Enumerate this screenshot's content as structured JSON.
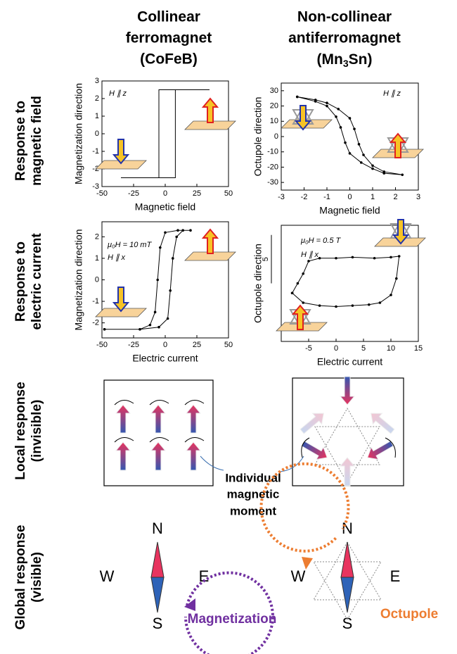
{
  "columns": [
    {
      "lines": [
        "Collinear",
        "ferromagnet",
        "(CoFeB)"
      ]
    },
    {
      "lines": [
        "Non-collinear",
        "antiferromagnet"
      ],
      "formula": [
        "(Mn",
        "3",
        "Sn)"
      ]
    }
  ],
  "rows": [
    [
      "Response to",
      "magnetic field"
    ],
    [
      "Response to",
      "electric current"
    ],
    [
      "Local response",
      "(invisible)"
    ],
    [
      "Global response",
      "(visible)"
    ]
  ],
  "chart_data": [
    {
      "type": "line",
      "x_label": "Magnetic field",
      "y_label": "Magnetization direction",
      "annotations": [
        "H ∥ z"
      ],
      "x": [
        -35,
        8,
        8,
        35,
        -5,
        -5,
        -35
      ],
      "values": [
        -2.5,
        -2.5,
        2.5,
        2.5,
        2.5,
        -2.5,
        -2.5
      ],
      "color": "#000000",
      "markers": false,
      "xlim": [
        -50,
        50
      ],
      "ylim": [
        -3,
        3
      ],
      "xticks": [
        -50,
        -25,
        0,
        25,
        50
      ],
      "yticks": [
        -3,
        -2,
        -1,
        0,
        1,
        2,
        3
      ]
    },
    {
      "type": "line",
      "x_label": "Magnetic field",
      "y_label": "Octupole direction",
      "annotations": [
        "H ∥ z"
      ],
      "x": [
        -2.3,
        -1.5,
        -1,
        -0.5,
        0,
        0.2,
        0.4,
        0.6,
        1,
        1.5,
        2.3,
        1.5,
        1,
        0.5,
        0,
        -0.2,
        -0.4,
        -0.6,
        -1,
        -1.5,
        -2.3
      ],
      "values": [
        26,
        24,
        22,
        18,
        12,
        5,
        -5,
        -12,
        -19,
        -23,
        -25,
        -24,
        -21,
        -17,
        -11,
        -4,
        6,
        13,
        20,
        23,
        26
      ],
      "color": "#000000",
      "markers": true,
      "xlim": [
        -3,
        3
      ],
      "ylim": [
        -35,
        35
      ],
      "xticks": [
        -3,
        -2,
        -1,
        0,
        1,
        2,
        3
      ],
      "yticks": [
        -30,
        -20,
        -10,
        0,
        10,
        20,
        30
      ]
    },
    {
      "type": "line",
      "x_label": "Electric current",
      "y_label": "Magnetization direction",
      "annotations": [
        "μ₀H = 10 mT",
        "H ∥ x"
      ],
      "x": [
        -48,
        -20,
        -5,
        2,
        4,
        6,
        9,
        14,
        20,
        10,
        0,
        -4,
        -6,
        -8,
        -12,
        -20,
        -48
      ],
      "values": [
        -2.3,
        -2.3,
        -2.2,
        -1.8,
        -0.5,
        1,
        2,
        2.3,
        2.3,
        2.3,
        2.2,
        1.5,
        0,
        -1.5,
        -2.1,
        -2.3,
        -2.3
      ],
      "color": "#000000",
      "markers": true,
      "xlim": [
        -50,
        50
      ],
      "ylim": [
        -2.7,
        2.7
      ],
      "xticks": [
        -50,
        -25,
        0,
        25,
        50
      ],
      "yticks": [
        -2,
        -1,
        0,
        1,
        2
      ]
    },
    {
      "type": "line",
      "x_label": "Electric current",
      "y_label": "Octupole direction",
      "annotations": [
        "μ₀H = 0.5 T",
        "H ∥ x"
      ],
      "scale_bar": 5,
      "x": [
        -8,
        -6,
        -3,
        0,
        3,
        6,
        8,
        10,
        11,
        11.5,
        10,
        7,
        3,
        0,
        -3,
        -5,
        -6,
        -7,
        -8
      ],
      "values": [
        -1,
        -2,
        -2.3,
        -2.4,
        -2.3,
        -2.2,
        -2,
        -1.2,
        0.5,
        2.8,
        2.7,
        2.6,
        2.7,
        2.6,
        2.6,
        2.3,
        1,
        0,
        -1
      ],
      "color": "#000000",
      "markers": true,
      "xlim": [
        -10,
        15
      ],
      "ylim": [
        -6,
        6
      ],
      "xticks": [
        -5,
        0,
        5,
        10,
        15
      ]
    }
  ],
  "local_label": [
    "Individual",
    "magnetic",
    "moment"
  ],
  "compass": {
    "directions": [
      "N",
      "S",
      "W",
      "E"
    ],
    "labels": [
      "Magnetization",
      "Octupole"
    ]
  }
}
